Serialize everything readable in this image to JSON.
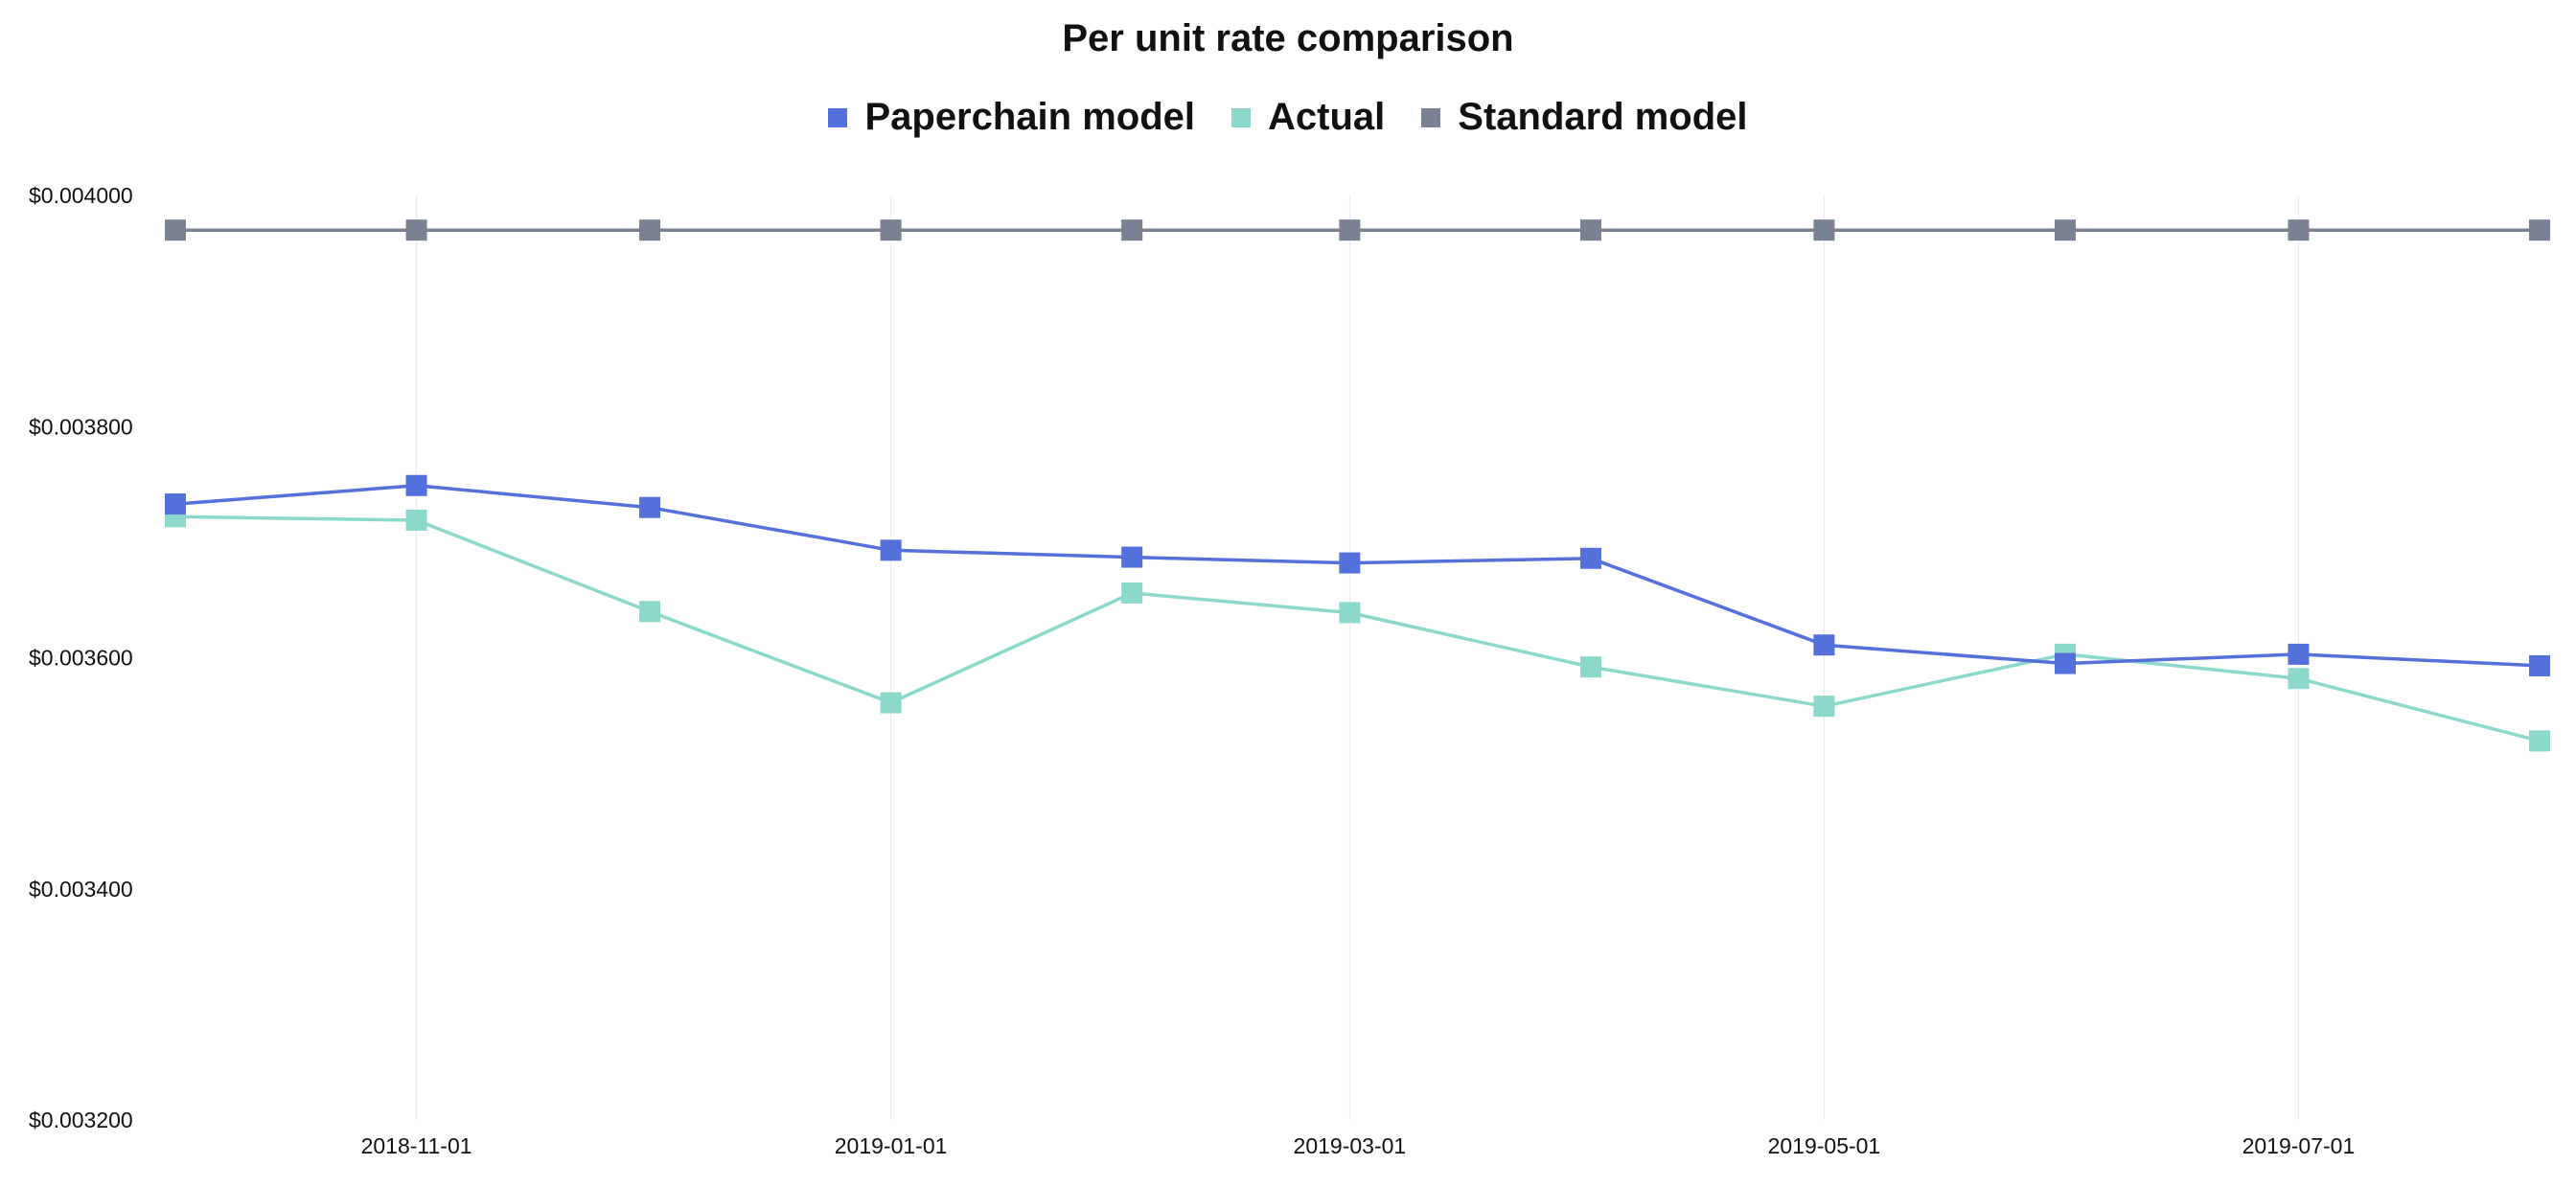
{
  "chart_data": {
    "type": "line",
    "title": "Per unit rate comparison",
    "xlabel": "",
    "ylabel": "",
    "x": [
      "2018-10-01",
      "2018-11-01",
      "2018-12-01",
      "2019-01-01",
      "2019-02-01",
      "2019-03-01",
      "2019-04-01",
      "2019-05-01",
      "2019-06-01",
      "2019-07-01",
      "2019-08-01"
    ],
    "x_ticks": [
      "2018-11-01",
      "2019-01-01",
      "2019-03-01",
      "2019-05-01",
      "2019-07-01"
    ],
    "ylim": [
      0.0032,
      0.004
    ],
    "y_ticks": [
      0.0032,
      0.0034,
      0.0036,
      0.0038,
      0.004
    ],
    "y_tick_labels": [
      "$0.003200",
      "$0.003400",
      "$0.003600",
      "$0.003800",
      "$0.004000"
    ],
    "grid": "vertical",
    "legend_position": "top-center",
    "series": [
      {
        "name": "Paperchain model",
        "color": "#5470db",
        "values": [
          0.003733,
          0.003749,
          0.00373,
          0.003693,
          0.003687,
          0.003682,
          0.003686,
          0.003611,
          0.003595,
          0.003603,
          0.003593
        ]
      },
      {
        "name": "Actual",
        "color": "#8cd9cb",
        "values": [
          0.003722,
          0.003719,
          0.00364,
          0.003561,
          0.003656,
          0.003639,
          0.003592,
          0.003558,
          0.003603,
          0.003582,
          0.003528
        ]
      },
      {
        "name": "Standard model",
        "color": "#7a8193",
        "values": [
          0.00397,
          0.00397,
          0.00397,
          0.00397,
          0.00397,
          0.00397,
          0.00397,
          0.00397,
          0.00397,
          0.00397,
          0.00397
        ]
      }
    ]
  }
}
